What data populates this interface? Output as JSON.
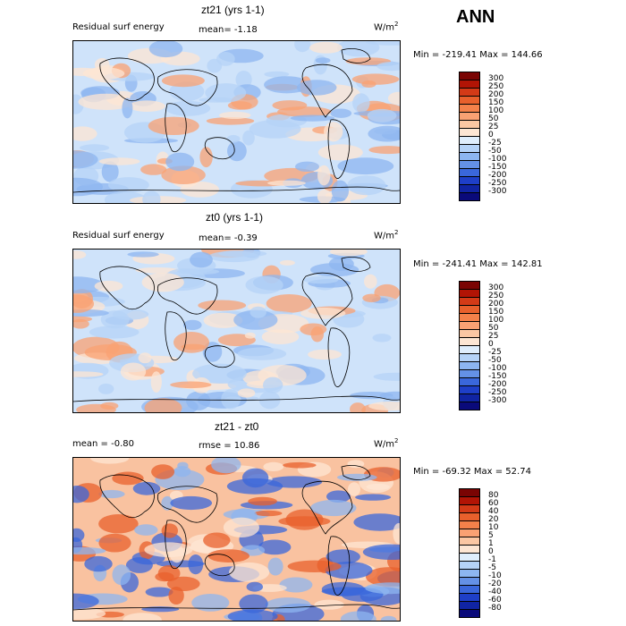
{
  "season": "ANN",
  "panels": [
    {
      "title": "zt21 (yrs 1-1)",
      "left_label": "Residual surf energy",
      "mid_label": "mean=  -1.18",
      "units": "W/m",
      "units_sup": "2",
      "minmax": "Min = -219.41 Max = 144.66",
      "colorbar": {
        "levels": [
          "300",
          "250",
          "200",
          "150",
          "100",
          "50",
          "25",
          "0",
          "-25",
          "-50",
          "-100",
          "-150",
          "-200",
          "-250",
          "-300"
        ],
        "colors": [
          "#7a0403",
          "#b11405",
          "#d33a17",
          "#e8602c",
          "#f4814a",
          "#f9a173",
          "#fbc7a3",
          "#fde6d3",
          "#dfeefc",
          "#b5d3f7",
          "#8db6f0",
          "#6491e6",
          "#3a67db",
          "#1e3fc8",
          "#1024a3",
          "#0a0a7a"
        ]
      },
      "map": {
        "background": "#cfe3fa",
        "stipple": [
          "#fde6d3",
          "#b5d3f7",
          "#f9a173",
          "#8db6f0"
        ]
      }
    },
    {
      "title": "zt0 (yrs 1-1)",
      "left_label": "Residual surf energy",
      "mid_label": "mean=  -0.39",
      "units": "W/m",
      "units_sup": "2",
      "minmax": "Min = -241.41 Max = 142.81",
      "colorbar": {
        "levels": [
          "300",
          "250",
          "200",
          "150",
          "100",
          "50",
          "25",
          "0",
          "-25",
          "-50",
          "-100",
          "-150",
          "-200",
          "-250",
          "-300"
        ],
        "colors": [
          "#7a0403",
          "#b11405",
          "#d33a17",
          "#e8602c",
          "#f4814a",
          "#f9a173",
          "#fbc7a3",
          "#fde6d3",
          "#dfeefc",
          "#b5d3f7",
          "#8db6f0",
          "#6491e6",
          "#3a67db",
          "#1e3fc8",
          "#1024a3",
          "#0a0a7a"
        ]
      },
      "map": {
        "background": "#cfe3fa",
        "stipple": [
          "#fde6d3",
          "#b5d3f7",
          "#f9a173",
          "#8db6f0"
        ]
      }
    },
    {
      "title": "zt21 - zt0",
      "left_label": "mean =  -0.80",
      "mid_label": "rmse =  10.86",
      "units": "W/m",
      "units_sup": "2",
      "minmax": "Min = -69.32 Max =  52.74",
      "colorbar": {
        "levels": [
          "80",
          "60",
          "40",
          "20",
          "10",
          "5",
          "1",
          "0",
          "-1",
          "-5",
          "-10",
          "-20",
          "-40",
          "-60",
          "-80"
        ],
        "colors": [
          "#7a0403",
          "#b11405",
          "#d33a17",
          "#e8602c",
          "#f4814a",
          "#f9a173",
          "#fbc7a3",
          "#fde6d3",
          "#dfeefc",
          "#b5d3f7",
          "#8db6f0",
          "#6491e6",
          "#3a67db",
          "#1e3fc8",
          "#1024a3",
          "#0a0a7a"
        ]
      },
      "map": {
        "background": "#f9c2a0",
        "stipple": [
          "#e8602c",
          "#8db6f0",
          "#fde6d3",
          "#3a67db"
        ]
      }
    }
  ]
}
